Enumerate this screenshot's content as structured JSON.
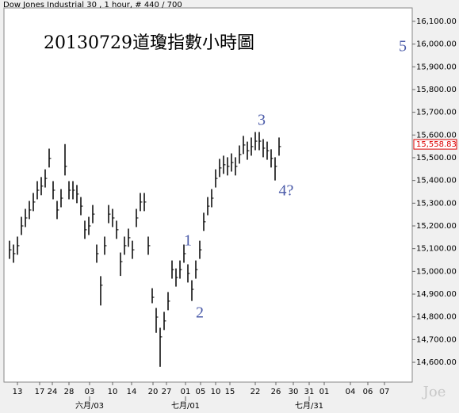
{
  "chart_data": {
    "type": "range-bar",
    "title": "Dow Jones Industrial 30 , 1 hour, # 440 / 700",
    "annotation": "20130729道瓊指數小時圖",
    "wave_labels": [
      "1",
      "2",
      "3",
      "4?",
      "5"
    ],
    "watermark": "Joe",
    "color": "#000000",
    "closes": [
      15095,
      15078,
      15113,
      15200,
      15235,
      15270,
      15305,
      15357,
      15375,
      15409,
      15497,
      15357,
      15270,
      15322,
      15462,
      15357,
      15357,
      15340,
      15287,
      15183,
      15200,
      15252,
      15078,
      14939,
      15113,
      15252,
      15235,
      15183,
      15043,
      15113,
      15148,
      15095,
      15235,
      15305,
      15305,
      15113,
      14886,
      14799,
      14712,
      14782,
      14869,
      15008,
      14973,
      15008,
      15078,
      14991,
      14921,
      15008,
      15095,
      15218,
      15287,
      15322,
      15409,
      15455,
      15469,
      15462,
      15479,
      15462,
      15514,
      15556,
      15531,
      15549,
      15573,
      15573,
      15542,
      15531,
      15497,
      15462,
      15549
    ],
    "highs": [
      15135,
      15118,
      15153,
      15240,
      15275,
      15310,
      15345,
      15397,
      15415,
      15449,
      15540,
      15397,
      15310,
      15362,
      15560,
      15397,
      15397,
      15380,
      15327,
      15223,
      15240,
      15292,
      15118,
      14979,
      15153,
      15292,
      15275,
      15223,
      15083,
      15153,
      15188,
      15135,
      15275,
      15345,
      15345,
      15153,
      14926,
      14839,
      14752,
      14822,
      14909,
      15048,
      15013,
      15048,
      15118,
      15031,
      14961,
      15048,
      15135,
      15258,
      15327,
      15362,
      15449,
      15495,
      15509,
      15502,
      15519,
      15502,
      15554,
      15596,
      15571,
      15589,
      15613,
      15613,
      15582,
      15571,
      15537,
      15502,
      15589
    ],
    "lows": [
      15055,
      15038,
      15073,
      15160,
      15195,
      15230,
      15265,
      15317,
      15335,
      15369,
      15457,
      15317,
      15230,
      15282,
      15422,
      15317,
      15317,
      15300,
      15247,
      15143,
      15160,
      15212,
      15038,
      14850,
      15073,
      15212,
      15195,
      15143,
      14980,
      15073,
      15108,
      15055,
      15195,
      15265,
      15265,
      15073,
      14860,
      14730,
      14580,
      14742,
      14829,
      14968,
      14933,
      14968,
      15038,
      14951,
      14870,
      14968,
      15055,
      15178,
      15247,
      15282,
      15369,
      15415,
      15429,
      15422,
      15439,
      15422,
      15474,
      15516,
      15491,
      15509,
      15533,
      15533,
      15502,
      15491,
      15457,
      15400,
      15509
    ],
    "last_price": 15558.83,
    "last_price_label": "15,558.83",
    "xlim": [
      -1.4,
      101.6
    ],
    "xticks": [
      {
        "value": 2,
        "label": "13"
      },
      {
        "value": 7.6,
        "label": "17"
      },
      {
        "value": 10.8,
        "label": "24"
      },
      {
        "value": 15,
        "label": "28"
      },
      {
        "value": 20.2,
        "label": "03"
      },
      {
        "value": 26,
        "label": "10"
      },
      {
        "value": 30.8,
        "label": "14"
      },
      {
        "value": 36.2,
        "label": "20"
      },
      {
        "value": 39.6,
        "label": "27"
      },
      {
        "value": 44.4,
        "label": "01"
      },
      {
        "value": 48.2,
        "label": "05"
      },
      {
        "value": 52,
        "label": "10"
      },
      {
        "value": 55.6,
        "label": "15"
      },
      {
        "value": 62,
        "label": "22"
      },
      {
        "value": 67.2,
        "label": "26"
      },
      {
        "value": 71.6,
        "label": "30"
      },
      {
        "value": 75.6,
        "label": "31"
      },
      {
        "value": 79.4,
        "label": "01"
      },
      {
        "value": 86,
        "label": "04"
      },
      {
        "value": 90.4,
        "label": "06"
      },
      {
        "value": 94.6,
        "label": "07"
      }
    ],
    "month_ticks": [
      {
        "value": 20.2,
        "label": "六月/03"
      },
      {
        "value": 44.4,
        "label": "七月/01"
      },
      {
        "value": 75.6,
        "label": "七月/31"
      }
    ],
    "ylim": [
      14513,
      16159
    ],
    "yticks": [
      {
        "value": 14600,
        "label": "14,600.00"
      },
      {
        "value": 14700,
        "label": "14,700.00"
      },
      {
        "value": 14800,
        "label": "14,800.00"
      },
      {
        "value": 14900,
        "label": "14,900.00"
      },
      {
        "value": 15000,
        "label": "15,000.00"
      },
      {
        "value": 15100,
        "label": "15,100.00"
      },
      {
        "value": 15200,
        "label": "15,200.00"
      },
      {
        "value": 15300,
        "label": "15,300.00"
      },
      {
        "value": 15400,
        "label": "15,400.00"
      },
      {
        "value": 15500,
        "label": "15,500.00"
      },
      {
        "value": 15600,
        "label": "15,600.00"
      },
      {
        "value": 15700,
        "label": "15,700.00"
      },
      {
        "value": 15800,
        "label": "15,800.00"
      },
      {
        "value": 15900,
        "label": "15,900.00"
      },
      {
        "value": 16000,
        "label": "16,000.00"
      },
      {
        "value": 16100,
        "label": "16,100.00"
      }
    ],
    "grid": false
  }
}
